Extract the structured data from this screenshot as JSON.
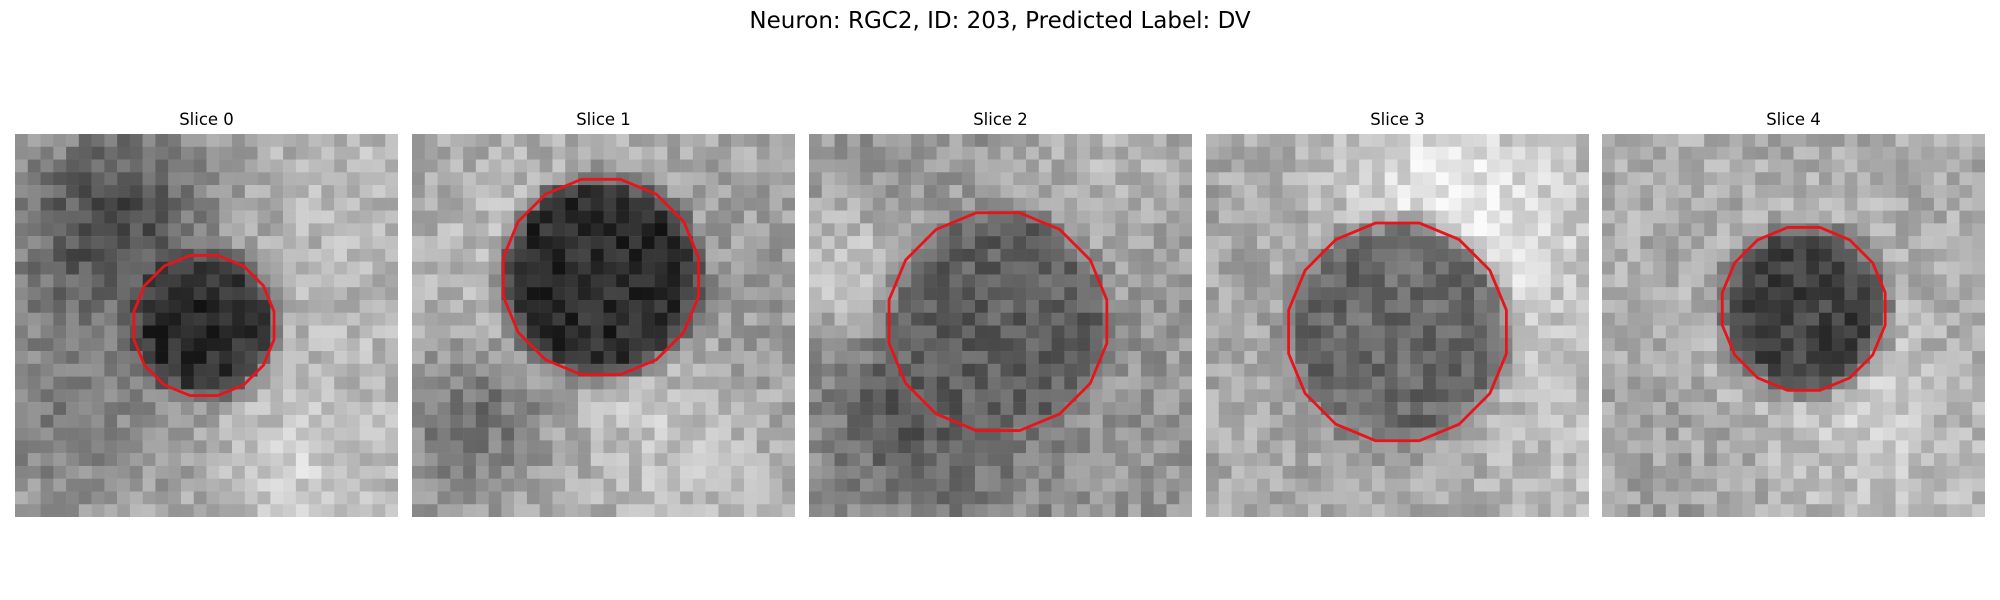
{
  "figure": {
    "title": "Neuron: RGC2, ID: 203, Predicted Label: DV"
  },
  "contour_color": "#e8141c",
  "panels": [
    {
      "title": "Slice 0",
      "image": "grayscale microscopy patch, dark round cell body centered, red contour outline"
    },
    {
      "title": "Slice 1",
      "image": "grayscale microscopy patch, large dark cell body, red contour outline"
    },
    {
      "title": "Slice 2",
      "image": "grayscale microscopy patch, medium gray cell body, red contour outline"
    },
    {
      "title": "Slice 3",
      "image": "grayscale microscopy patch, medium gray cell body, red contour outline"
    },
    {
      "title": "Slice 4",
      "image": "grayscale microscopy patch, dark cell body, red contour outline"
    }
  ]
}
